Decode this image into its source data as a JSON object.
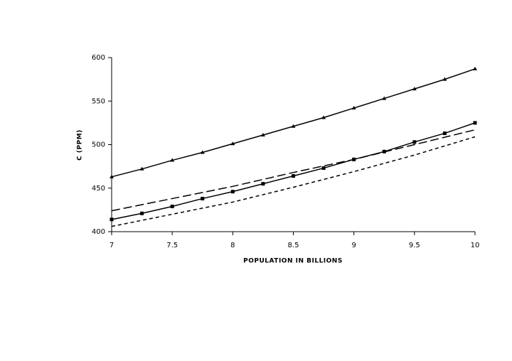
{
  "chart_data": {
    "type": "line",
    "y_label": "C (PPM)",
    "x_label": "POPULATION IN BILLIONS",
    "xlim": [
      7,
      10
    ],
    "xticks": [
      7,
      7.5,
      8,
      8.5,
      9,
      9.5,
      10
    ],
    "ylim": [
      400,
      600
    ],
    "yticks": [
      400,
      450,
      500,
      550,
      600
    ],
    "grid": false,
    "series": [
      {
        "color": "#000000",
        "line_style": "solid",
        "marker": "triangle",
        "x": [
          7,
          7.25,
          7.5,
          7.75,
          8,
          8.25,
          8.5,
          8.75,
          9,
          9.25,
          9.5,
          9.75,
          10
        ],
        "values": [
          463,
          472,
          482,
          491,
          501,
          511,
          521,
          531,
          542,
          553,
          564,
          575,
          587
        ]
      },
      {
        "color": "#000000",
        "line_style": "solid",
        "marker": "square",
        "x": [
          7,
          7.25,
          7.5,
          7.75,
          8,
          8.25,
          8.5,
          8.75,
          9,
          9.25,
          9.5,
          9.75,
          10
        ],
        "values": [
          414,
          421,
          429,
          438,
          446,
          455,
          464,
          473,
          483,
          492,
          503,
          513,
          525
        ]
      },
      {
        "color": "#000000",
        "line_style": "long-dash",
        "marker": "none",
        "x": [
          7,
          7.5,
          8,
          8.5,
          9,
          9.5,
          10
        ],
        "values": [
          424,
          438,
          452,
          468,
          483,
          500,
          517
        ]
      },
      {
        "color": "#000000",
        "line_style": "short-dash",
        "marker": "none",
        "x": [
          7,
          7.5,
          8,
          8.5,
          9,
          9.5,
          10
        ],
        "values": [
          406,
          420,
          434,
          451,
          469,
          488,
          509
        ]
      }
    ]
  }
}
